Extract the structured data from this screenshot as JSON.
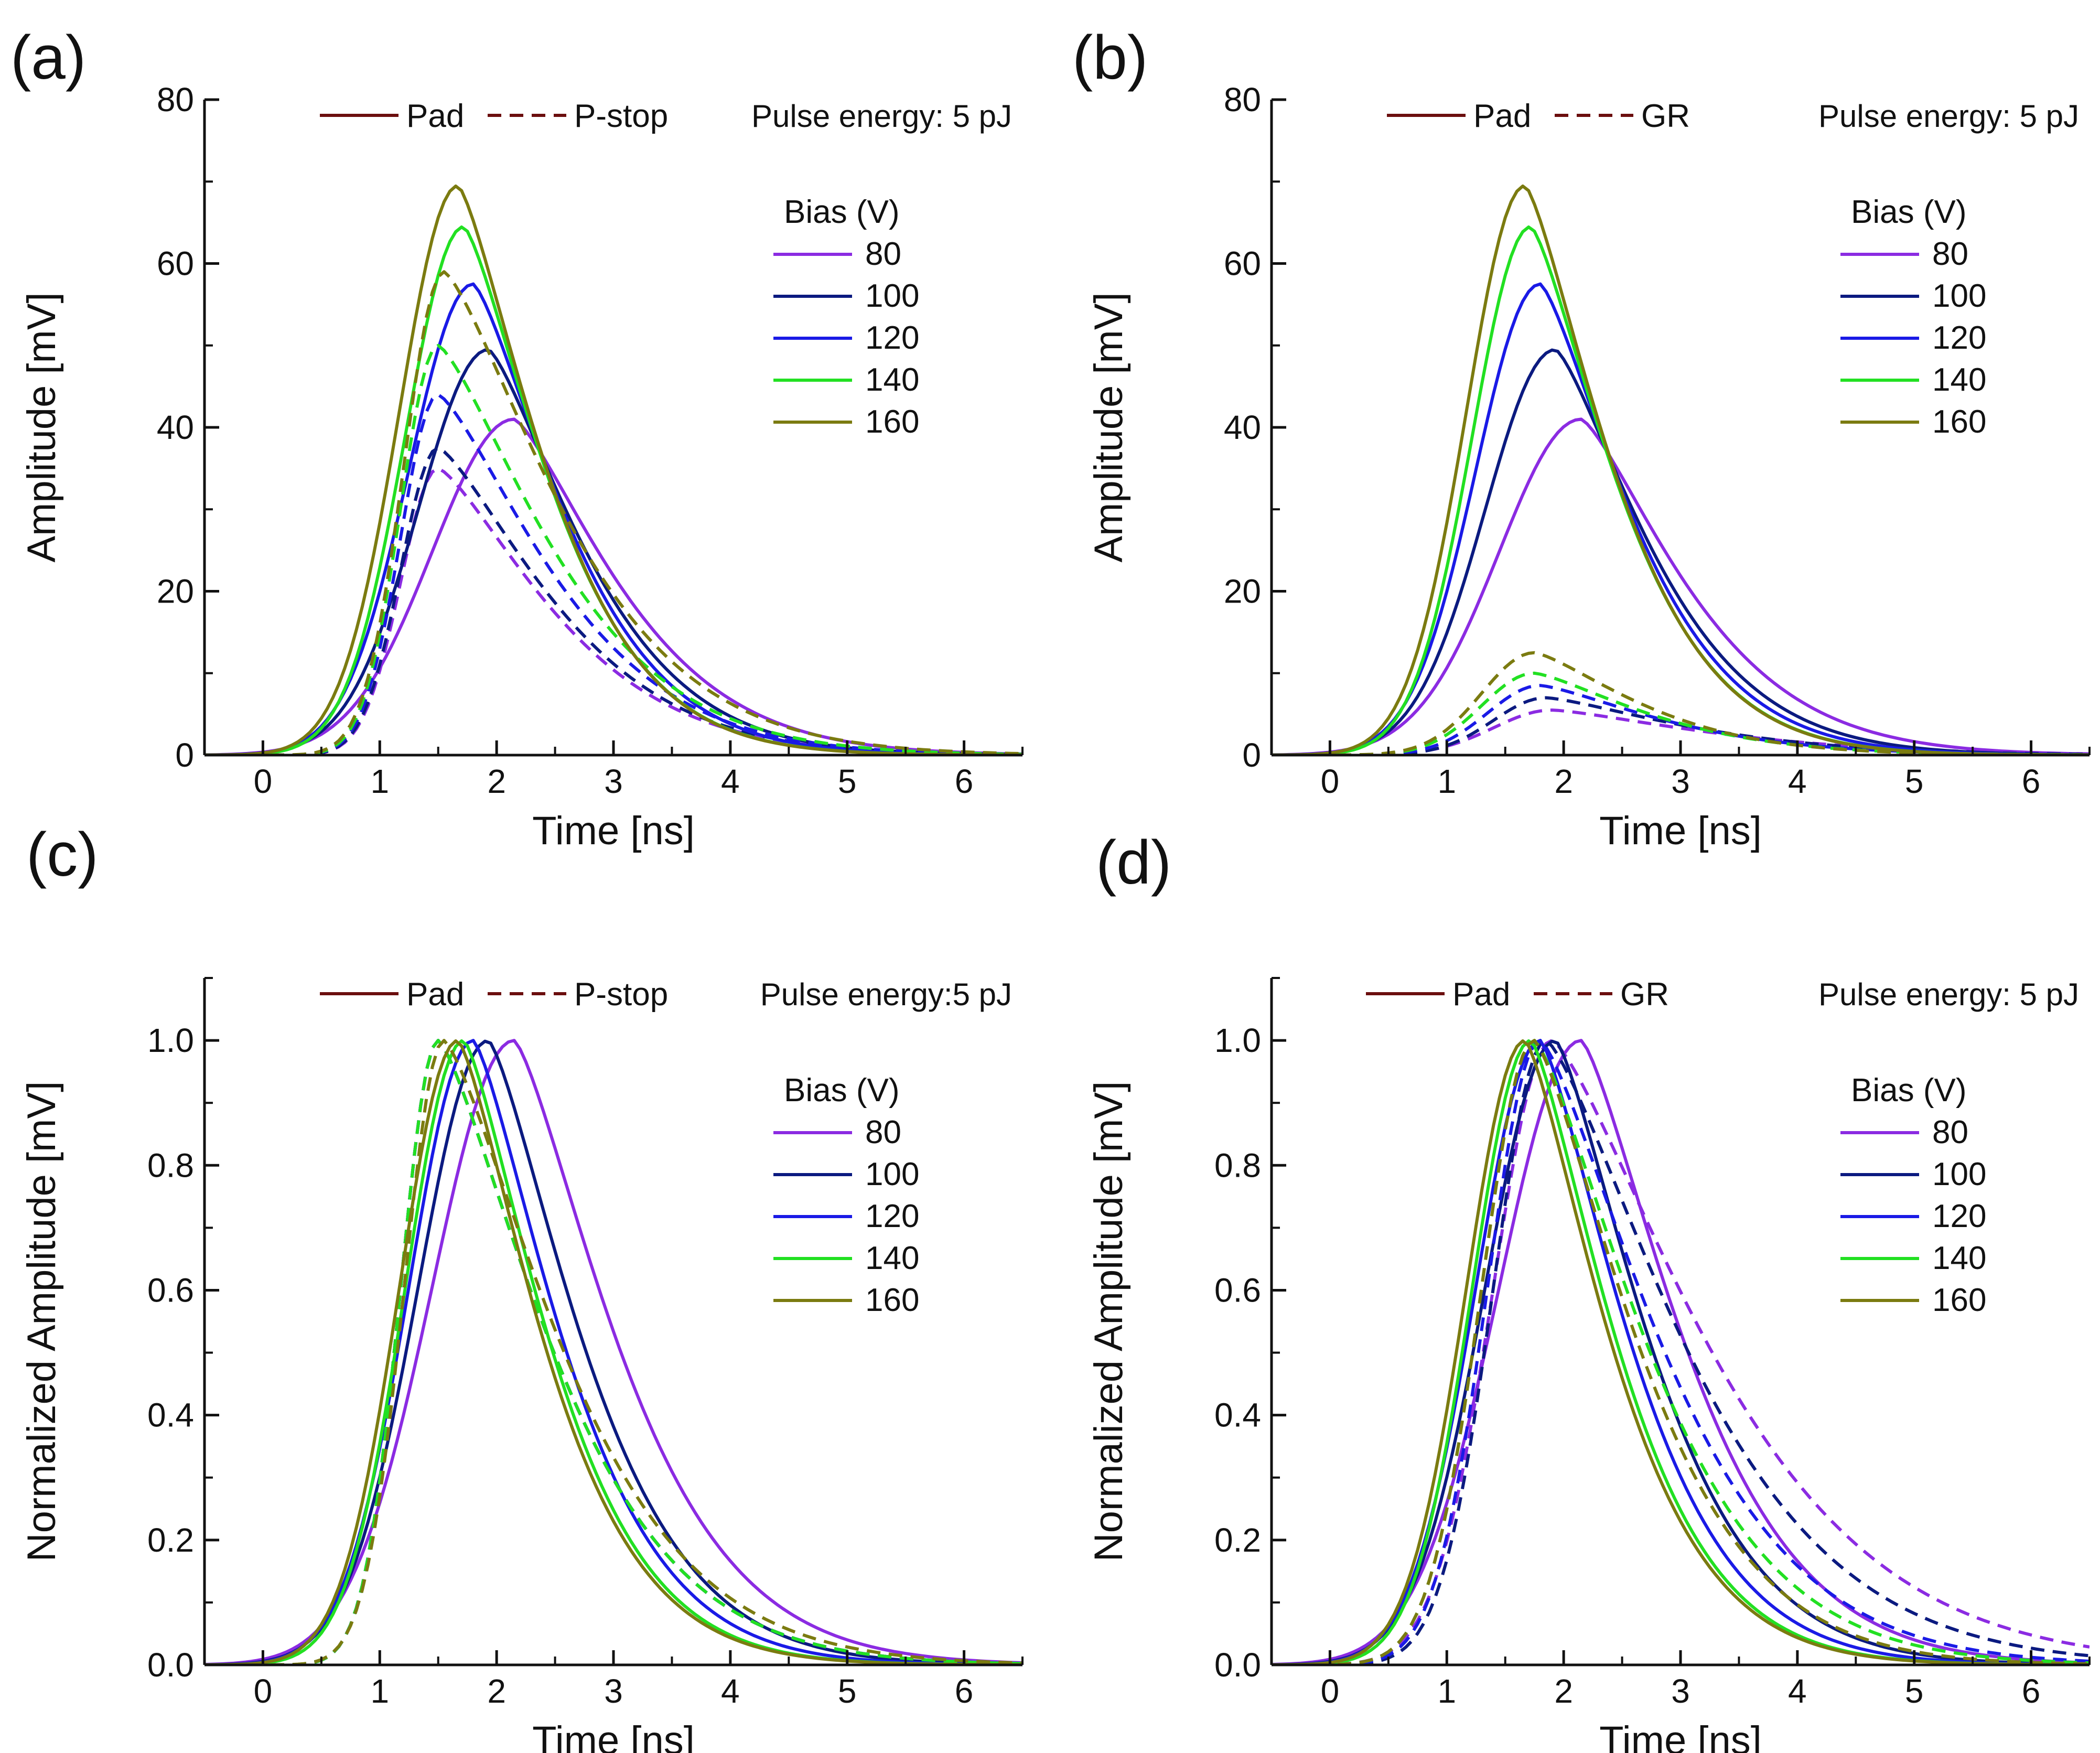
{
  "figure": {
    "line_style_legend": {
      "solid_label": "Pad",
      "dashed_labels": {
        "p_stop": "P-stop",
        "gr": "GR"
      }
    },
    "bias_legend_title": "Bias (V)"
  },
  "chart_data": [
    {
      "panel": "(a)",
      "type": "line",
      "title": "",
      "annotation": "Pulse energy: 5 pJ",
      "xlabel": "Time [ns]",
      "ylabel": "Amplitude [mV]",
      "xlim": [
        -0.5,
        6.5
      ],
      "ylim": [
        0,
        80
      ],
      "xticks": [
        0,
        1,
        2,
        3,
        4,
        5,
        6
      ],
      "yticks": [
        0,
        20,
        40,
        60,
        80
      ],
      "solid_label": "Pad",
      "dashed_label": "P-stop",
      "legend_title": "Bias (V)",
      "series": [
        {
          "name": "80",
          "color": "#8B2BE2",
          "solid": {
            "peak": 41,
            "t_peak": 2.15,
            "rise": 0.7,
            "tau": 1.2
          },
          "dashed": {
            "peak": 35,
            "t_peak": 1.5,
            "rise": 0.32,
            "tau": 1.3
          }
        },
        {
          "name": "100",
          "color": "#0B1A80",
          "solid": {
            "peak": 49.5,
            "t_peak": 1.93,
            "rise": 0.6,
            "tau": 1.1
          },
          "dashed": {
            "peak": 37.5,
            "t_peak": 1.5,
            "rise": 0.32,
            "tau": 1.3
          }
        },
        {
          "name": "120",
          "color": "#1A1AE6",
          "solid": {
            "peak": 57.5,
            "t_peak": 1.8,
            "rise": 0.55,
            "tau": 1.05
          },
          "dashed": {
            "peak": 44,
            "t_peak": 1.5,
            "rise": 0.32,
            "tau": 1.3
          }
        },
        {
          "name": "140",
          "color": "#22E022",
          "solid": {
            "peak": 64.5,
            "t_peak": 1.72,
            "rise": 0.5,
            "tau": 1.0
          },
          "dashed": {
            "peak": 50,
            "t_peak": 1.5,
            "rise": 0.32,
            "tau": 1.3
          }
        },
        {
          "name": "160",
          "color": "#7B7B10",
          "solid": {
            "peak": 69.5,
            "t_peak": 1.67,
            "rise": 0.5,
            "tau": 1.0
          },
          "dashed": {
            "peak": 59,
            "t_peak": 1.55,
            "rise": 0.34,
            "tau": 1.35
          }
        }
      ]
    },
    {
      "panel": "(b)",
      "type": "line",
      "title": "",
      "annotation": "Pulse energy: 5 pJ",
      "xlabel": "Time [ns]",
      "ylabel": "Amplitude [mV]",
      "xlim": [
        -0.5,
        6.5
      ],
      "ylim": [
        0,
        80
      ],
      "xticks": [
        0,
        1,
        2,
        3,
        4,
        5,
        6
      ],
      "yticks": [
        0,
        20,
        40,
        60,
        80
      ],
      "solid_label": "Pad",
      "dashed_label": "GR",
      "legend_title": "Bias (V)",
      "series": [
        {
          "name": "80",
          "color": "#8B2BE2",
          "solid": {
            "peak": 41,
            "t_peak": 2.15,
            "rise": 0.7,
            "tau": 1.2
          },
          "dashed": {
            "peak": 5.5,
            "t_peak": 1.9,
            "rise": 0.5,
            "tau": 1.8
          }
        },
        {
          "name": "100",
          "color": "#0B1A80",
          "solid": {
            "peak": 49.5,
            "t_peak": 1.93,
            "rise": 0.6,
            "tau": 1.1
          },
          "dashed": {
            "peak": 7,
            "t_peak": 1.85,
            "rise": 0.45,
            "tau": 1.6
          }
        },
        {
          "name": "120",
          "color": "#1A1AE6",
          "solid": {
            "peak": 57.5,
            "t_peak": 1.8,
            "rise": 0.55,
            "tau": 1.05
          },
          "dashed": {
            "peak": 8.5,
            "t_peak": 1.8,
            "rise": 0.45,
            "tau": 1.4
          }
        },
        {
          "name": "140",
          "color": "#22E022",
          "solid": {
            "peak": 64.5,
            "t_peak": 1.72,
            "rise": 0.5,
            "tau": 1.0
          },
          "dashed": {
            "peak": 10,
            "t_peak": 1.75,
            "rise": 0.45,
            "tau": 1.3
          }
        },
        {
          "name": "160",
          "color": "#7B7B10",
          "solid": {
            "peak": 69.5,
            "t_peak": 1.67,
            "rise": 0.5,
            "tau": 1.0
          },
          "dashed": {
            "peak": 12.5,
            "t_peak": 1.75,
            "rise": 0.45,
            "tau": 1.2
          }
        }
      ]
    },
    {
      "panel": "(c)",
      "type": "line",
      "title": "",
      "annotation": "Pulse energy:5 pJ",
      "xlabel": "Time [ns]",
      "ylabel": "Normalized Amplitude [mV]",
      "xlim": [
        -0.5,
        6.5
      ],
      "ylim": [
        0,
        1.1
      ],
      "xticks": [
        0,
        1,
        2,
        3,
        4,
        5,
        6
      ],
      "yticks": [
        0.0,
        0.2,
        0.4,
        0.6,
        0.8,
        1.0
      ],
      "solid_label": "Pad",
      "dashed_label": "P-stop",
      "legend_title": "Bias (V)",
      "series": [
        {
          "name": "80",
          "color": "#8B2BE2",
          "solid": {
            "peak": 1.0,
            "t_peak": 2.15,
            "rise": 0.7,
            "tau": 1.2
          },
          "dashed": {
            "peak": 1.0,
            "t_peak": 1.5,
            "rise": 0.32,
            "tau": 1.3
          }
        },
        {
          "name": "100",
          "color": "#0B1A80",
          "solid": {
            "peak": 1.0,
            "t_peak": 1.93,
            "rise": 0.6,
            "tau": 1.1
          },
          "dashed": {
            "peak": 1.0,
            "t_peak": 1.5,
            "rise": 0.32,
            "tau": 1.3
          }
        },
        {
          "name": "120",
          "color": "#1A1AE6",
          "solid": {
            "peak": 1.0,
            "t_peak": 1.8,
            "rise": 0.55,
            "tau": 1.05
          },
          "dashed": {
            "peak": 1.0,
            "t_peak": 1.5,
            "rise": 0.32,
            "tau": 1.3
          }
        },
        {
          "name": "140",
          "color": "#22E022",
          "solid": {
            "peak": 1.0,
            "t_peak": 1.72,
            "rise": 0.5,
            "tau": 1.0
          },
          "dashed": {
            "peak": 1.0,
            "t_peak": 1.5,
            "rise": 0.32,
            "tau": 1.3
          }
        },
        {
          "name": "160",
          "color": "#7B7B10",
          "solid": {
            "peak": 1.0,
            "t_peak": 1.67,
            "rise": 0.5,
            "tau": 1.0
          },
          "dashed": {
            "peak": 1.0,
            "t_peak": 1.55,
            "rise": 0.34,
            "tau": 1.35
          }
        }
      ]
    },
    {
      "panel": "(d)",
      "type": "line",
      "title": "",
      "annotation": "Pulse energy: 5 pJ",
      "xlabel": "Time [ns]",
      "ylabel": "Normalized Amplitude [mV]",
      "xlim": [
        -0.5,
        6.5
      ],
      "ylim": [
        0,
        1.1
      ],
      "xticks": [
        0,
        1,
        2,
        3,
        4,
        5,
        6
      ],
      "yticks": [
        0.0,
        0.2,
        0.4,
        0.6,
        0.8,
        1.0
      ],
      "solid_label": "Pad",
      "dashed_label": "GR",
      "legend_title": "Bias (V)",
      "series": [
        {
          "name": "80",
          "color": "#8B2BE2",
          "solid": {
            "peak": 1.0,
            "t_peak": 2.15,
            "rise": 0.7,
            "tau": 1.2
          },
          "dashed": {
            "peak": 1.0,
            "t_peak": 1.9,
            "rise": 0.5,
            "tau": 1.8
          }
        },
        {
          "name": "100",
          "color": "#0B1A80",
          "solid": {
            "peak": 1.0,
            "t_peak": 1.93,
            "rise": 0.6,
            "tau": 1.1
          },
          "dashed": {
            "peak": 1.0,
            "t_peak": 1.85,
            "rise": 0.45,
            "tau": 1.6
          }
        },
        {
          "name": "120",
          "color": "#1A1AE6",
          "solid": {
            "peak": 1.0,
            "t_peak": 1.8,
            "rise": 0.55,
            "tau": 1.05
          },
          "dashed": {
            "peak": 1.0,
            "t_peak": 1.8,
            "rise": 0.45,
            "tau": 1.4
          }
        },
        {
          "name": "140",
          "color": "#22E022",
          "solid": {
            "peak": 1.0,
            "t_peak": 1.72,
            "rise": 0.5,
            "tau": 1.0
          },
          "dashed": {
            "peak": 1.0,
            "t_peak": 1.75,
            "rise": 0.45,
            "tau": 1.3
          }
        },
        {
          "name": "160",
          "color": "#7B7B10",
          "solid": {
            "peak": 1.0,
            "t_peak": 1.67,
            "rise": 0.5,
            "tau": 1.0
          },
          "dashed": {
            "peak": 1.0,
            "t_peak": 1.75,
            "rise": 0.45,
            "tau": 1.2
          }
        }
      ]
    }
  ]
}
